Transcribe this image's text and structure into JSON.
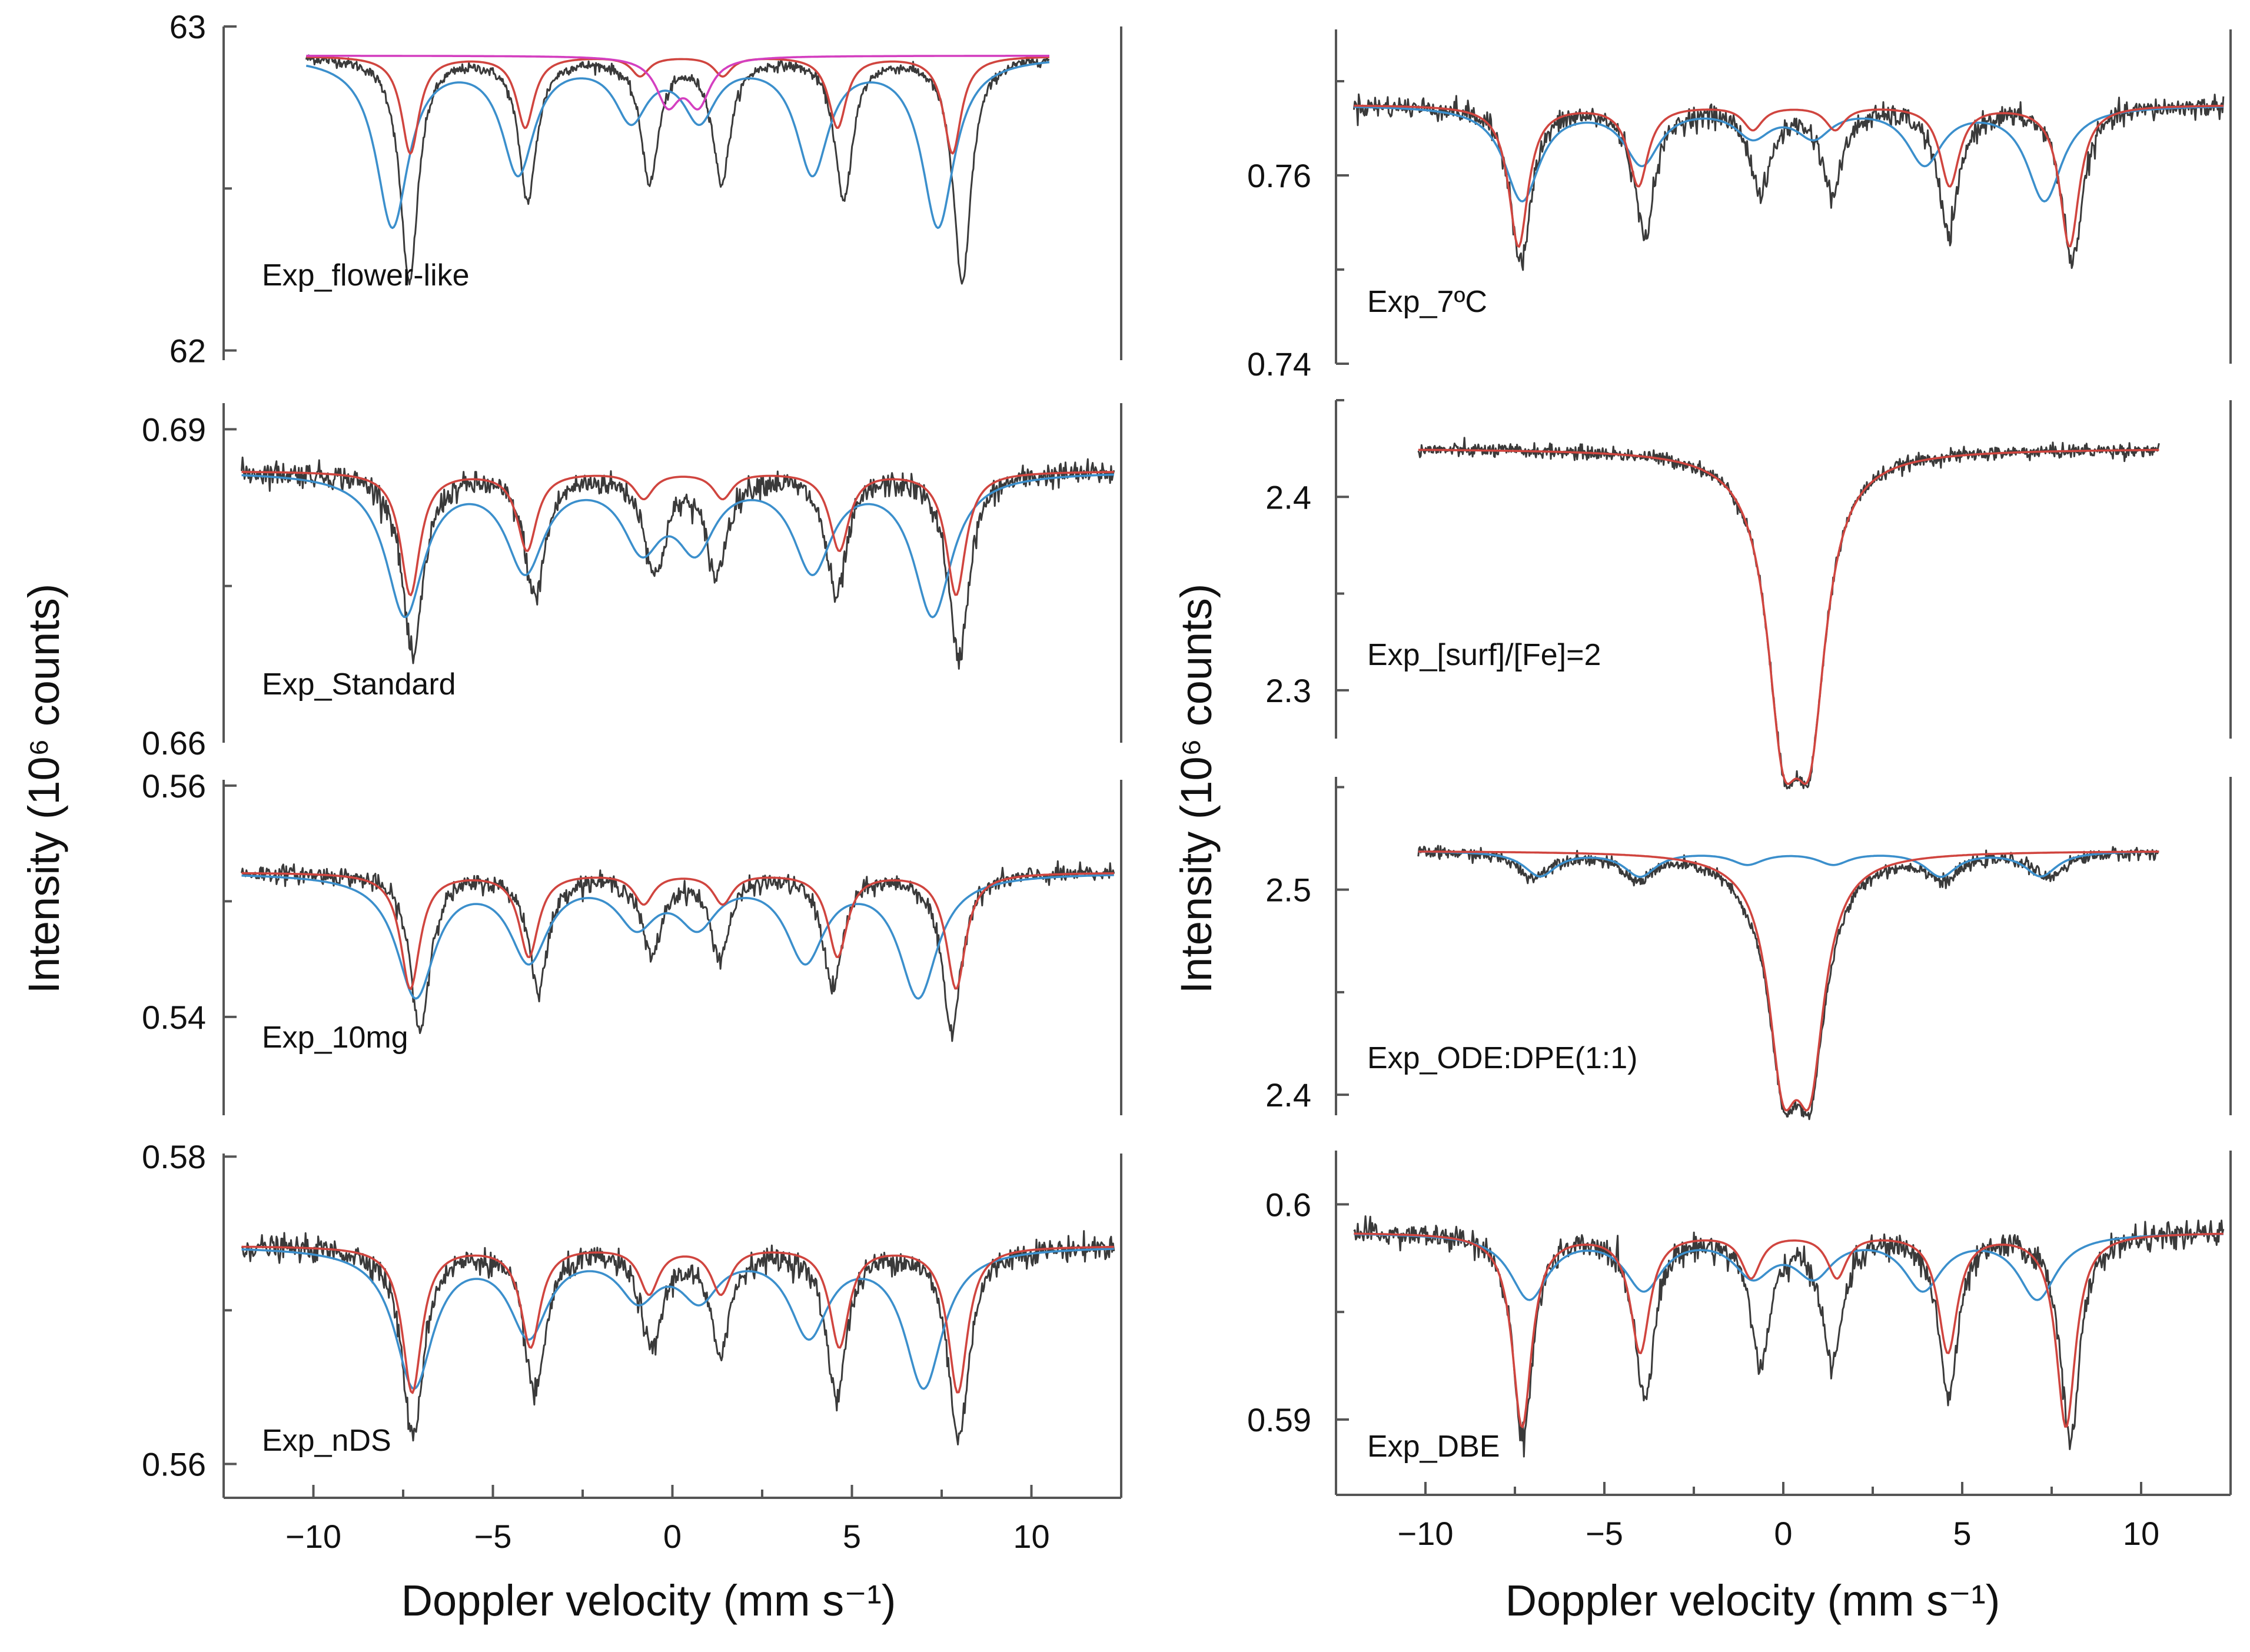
{
  "figure": {
    "left_y_axis_title": "Intensity (10⁶ counts)",
    "right_y_axis_title": "Intensity (10⁶ counts)",
    "left_x_axis_title": "Doppler velocity (mm s⁻¹)",
    "right_x_axis_title": "Doppler velocity (mm s⁻¹)"
  },
  "colors": {
    "experimental": "#3a3a3a",
    "sextet_a": "#d0453f",
    "sextet_b": "#3b8fcc",
    "doublet": "#d43fc0",
    "fit_blue_overlay": "#27508f"
  },
  "chart_data": [
    {
      "type": "line",
      "title": "Exp_flower-like",
      "xlabel": "Doppler velocity (mm s⁻¹)",
      "ylabel": "Intensity (10⁶ counts)",
      "xlim": [
        -12.5,
        12.5
      ],
      "ylim": [
        61.97,
        63.0
      ],
      "yticks": [
        "63",
        "62"
      ],
      "ytick_values": [
        63,
        62
      ],
      "xticks": [],
      "data_x_range": [
        -10.2,
        10.5
      ],
      "baseline": 62.91,
      "series": [
        {
          "name": "experimental",
          "kind": "sextet_data",
          "center": 0.37,
          "half_splits": [
            7.7,
            4.4,
            1.0
          ],
          "width": 0.3,
          "depths": [
            0.7,
            0.44,
            0.38
          ],
          "noise": 0.008
        },
        {
          "name": "sextet_a",
          "kind": "sextet",
          "center": 0.25,
          "half_splits": [
            7.55,
            4.35,
            1.15
          ],
          "width": 0.3,
          "depths": [
            0.3,
            0.22,
            0.06
          ]
        },
        {
          "name": "sextet_b",
          "kind": "sextet",
          "center": -0.2,
          "half_splits": [
            7.6,
            4.1,
            0.95
          ],
          "width": 0.55,
          "depths": [
            0.52,
            0.35,
            0.18
          ]
        },
        {
          "name": "doublet",
          "kind": "doublet",
          "center": 0.3,
          "splitting": 0.85,
          "width": 0.4,
          "depths": [
            0.14,
            0.14
          ]
        }
      ]
    },
    {
      "type": "line",
      "title": "Exp_Standard",
      "xlabel": "Doppler velocity (mm s⁻¹)",
      "ylabel": "Intensity (10⁶ counts)",
      "xlim": [
        -12.5,
        12.5
      ],
      "ylim": [
        0.66,
        0.6925
      ],
      "yticks": [
        "0.69",
        "0.66"
      ],
      "ytick_values": [
        0.69,
        0.66
      ],
      "xticks": [],
      "data_x_range": [
        -12.0,
        12.3
      ],
      "baseline": 0.686,
      "series": [
        {
          "name": "experimental",
          "kind": "sextet_data",
          "center": 0.37,
          "half_splits": [
            7.6,
            4.2,
            0.85
          ],
          "width": 0.35,
          "depths": [
            0.0178,
            0.0118,
            0.0095
          ],
          "noise": 0.0006
        },
        {
          "name": "sextet_a",
          "kind": "sextet",
          "center": 0.3,
          "half_splits": [
            7.6,
            4.35,
            1.1
          ],
          "width": 0.33,
          "depths": [
            0.0118,
            0.0075,
            0.0025
          ]
        },
        {
          "name": "sextet_b",
          "kind": "sextet",
          "center": -0.1,
          "half_splits": [
            7.35,
            4.0,
            0.75
          ],
          "width": 0.65,
          "depths": [
            0.0135,
            0.009,
            0.0065
          ]
        }
      ]
    },
    {
      "type": "line",
      "title": "Exp_10mg",
      "xlabel": "Doppler velocity (mm s⁻¹)",
      "ylabel": "Intensity (10⁶ counts)",
      "xlim": [
        -12.5,
        12.5
      ],
      "ylim": [
        0.5315,
        0.5605
      ],
      "yticks": [
        "0.56",
        "0.54"
      ],
      "ytick_values": [
        0.56,
        0.54
      ],
      "xticks": [],
      "data_x_range": [
        -12.0,
        12.3
      ],
      "baseline": 0.5525,
      "series": [
        {
          "name": "experimental",
          "kind": "sextet_data",
          "center": 0.37,
          "half_splits": [
            7.4,
            4.1,
            0.95
          ],
          "width": 0.33,
          "depths": [
            0.0135,
            0.0098,
            0.007
          ],
          "noise": 0.0004
        },
        {
          "name": "sextet_a",
          "kind": "sextet",
          "center": 0.3,
          "half_splits": [
            7.6,
            4.3,
            1.1
          ],
          "width": 0.33,
          "depths": [
            0.01,
            0.0072,
            0.0026
          ]
        },
        {
          "name": "sextet_b",
          "kind": "sextet",
          "center": -0.15,
          "half_splits": [
            7.0,
            3.85,
            0.85
          ],
          "width": 0.65,
          "depths": [
            0.0105,
            0.0072,
            0.004
          ]
        }
      ]
    },
    {
      "type": "line",
      "title": "Exp_nDS",
      "xlabel": "Doppler velocity (mm s⁻¹)",
      "ylabel": "Intensity (10⁶ counts)",
      "xlim": [
        -12.5,
        12.5
      ],
      "ylim": [
        0.5578,
        0.5802
      ],
      "yticks": [
        "0.58",
        "0.56"
      ],
      "ytick_values": [
        0.58,
        0.56
      ],
      "xticks": [
        "−10",
        "−5",
        "0",
        "5",
        "10"
      ],
      "xtick_values": [
        -10,
        -5,
        0,
        5,
        10
      ],
      "data_x_range": [
        -12.0,
        12.3
      ],
      "baseline": 0.5742,
      "series": [
        {
          "name": "experimental",
          "kind": "sextet_data",
          "center": 0.37,
          "half_splits": [
            7.6,
            4.2,
            0.95
          ],
          "width": 0.35,
          "depths": [
            0.0125,
            0.0095,
            0.0065
          ],
          "noise": 0.0004
        },
        {
          "name": "sextet_a",
          "kind": "sextet",
          "center": 0.35,
          "half_splits": [
            7.6,
            4.3,
            1.0
          ],
          "width": 0.33,
          "depths": [
            0.0095,
            0.0065,
            0.003
          ]
        },
        {
          "name": "sextet_b",
          "kind": "sextet",
          "center": -0.1,
          "half_splits": [
            7.1,
            3.9,
            0.85
          ],
          "width": 0.65,
          "depths": [
            0.009,
            0.0055,
            0.003
          ]
        }
      ]
    },
    {
      "type": "line",
      "title": "Exp_7ºC",
      "xlabel": "Doppler velocity (mm s⁻¹)",
      "ylabel": "Intensity (10⁶ counts)",
      "xlim": [
        -12.5,
        12.5
      ],
      "ylim": [
        0.74,
        0.7755
      ],
      "yticks": [
        "0.76",
        "0.74"
      ],
      "ytick_values": [
        0.76,
        0.74
      ],
      "xticks": [],
      "data_x_range": [
        -12.0,
        12.3
      ],
      "baseline": 0.7675,
      "series": [
        {
          "name": "experimental",
          "kind": "sextet_data",
          "center": 0.37,
          "half_splits": [
            7.7,
            4.25,
            1.0
          ],
          "width": 0.35,
          "depths": [
            0.0165,
            0.0135,
            0.009
          ],
          "noise": 0.0006
        },
        {
          "name": "sextet_a",
          "kind": "sextet",
          "center": 0.3,
          "half_splits": [
            7.7,
            4.35,
            1.15
          ],
          "width": 0.33,
          "depths": [
            0.015,
            0.0085,
            0.0025
          ]
        },
        {
          "name": "sextet_b",
          "kind": "sextet",
          "center": 0.0,
          "half_splits": [
            7.3,
            3.95,
            0.85
          ],
          "width": 0.6,
          "depths": [
            0.01,
            0.006,
            0.003
          ]
        }
      ]
    },
    {
      "type": "line",
      "title": "Exp_[surf]/[Fe]=2",
      "xlabel": "Doppler velocity (mm s⁻¹)",
      "ylabel": "Intensity (10⁶ counts)",
      "xlim": [
        -12.5,
        12.5
      ],
      "ylim": [
        2.275,
        2.45
      ],
      "yticks": [
        "2.4",
        "2.3"
      ],
      "ytick_values": [
        2.4,
        2.3
      ],
      "xticks": [],
      "data_x_range": [
        -10.2,
        10.5
      ],
      "baseline": 2.425,
      "series": [
        {
          "name": "experimental",
          "kind": "doublet_data",
          "center": 0.37,
          "splitting": 0.75,
          "width": 0.55,
          "depths": [
            0.125,
            0.125
          ],
          "noise": 0.0018
        },
        {
          "name": "sextet_a",
          "kind": "doublet",
          "center": 0.37,
          "splitting": 0.75,
          "width": 0.55,
          "depths": [
            0.125,
            0.125
          ]
        }
      ]
    },
    {
      "type": "line",
      "title": "Exp_ODE:DPE(1:1)",
      "xlabel": "Doppler velocity (mm s⁻¹)",
      "ylabel": "Intensity (10⁶ counts)",
      "xlim": [
        -12.5,
        12.5
      ],
      "ylim": [
        2.39,
        2.555
      ],
      "yticks": [
        "2.5",
        "2.4"
      ],
      "ytick_values": [
        2.5,
        2.4
      ],
      "xticks": [],
      "data_x_range": [
        -10.2,
        10.5
      ],
      "baseline": 2.519,
      "series": [
        {
          "name": "experimental",
          "kind": "sextet_doublet_data",
          "center": 0.2,
          "half_splits": [
            7.2,
            4.3,
            1.2
          ],
          "width": 0.5,
          "depths": [
            0.012,
            0.012,
            0.006
          ],
          "doublet_center": 0.37,
          "doublet_splitting": 0.75,
          "doublet_width": 0.5,
          "doublet_depths": [
            0.095,
            0.095
          ],
          "noise": 0.0015
        },
        {
          "name": "sextet_a",
          "kind": "doublet",
          "center": 0.37,
          "splitting": 0.75,
          "width": 0.5,
          "depths": [
            0.095,
            0.095
          ]
        },
        {
          "name": "sextet_b",
          "kind": "sextet",
          "center": 0.2,
          "half_splits": [
            7.0,
            4.2,
            1.2
          ],
          "width": 0.55,
          "depths": [
            0.012,
            0.012,
            0.006
          ]
        }
      ]
    },
    {
      "type": "line",
      "title": "Exp_DBE",
      "xlabel": "Doppler velocity (mm s⁻¹)",
      "ylabel": "Intensity (10⁶ counts)",
      "xlim": [
        -12.5,
        12.5
      ],
      "ylim": [
        0.5865,
        0.6025
      ],
      "yticks": [
        "0.6",
        "0.59"
      ],
      "ytick_values": [
        0.6,
        0.59
      ],
      "xticks": [
        "−10",
        "−5",
        "0",
        "5",
        "10"
      ],
      "xtick_values": [
        -10,
        -5,
        0,
        5,
        10
      ],
      "data_x_range": [
        -12.0,
        12.3
      ],
      "baseline": 0.5987,
      "series": [
        {
          "name": "experimental",
          "kind": "sextet_data",
          "center": 0.37,
          "half_splits": [
            7.65,
            4.25,
            1.0
          ],
          "width": 0.33,
          "depths": [
            0.0095,
            0.0075,
            0.006
          ],
          "noise": 0.0003
        },
        {
          "name": "sextet_a",
          "kind": "sextet",
          "center": 0.3,
          "half_splits": [
            7.6,
            4.3,
            1.2
          ],
          "width": 0.33,
          "depths": [
            0.009,
            0.0055,
            0.002
          ]
        },
        {
          "name": "sextet_b",
          "kind": "sextet",
          "center": 0.0,
          "half_splits": [
            7.1,
            3.9,
            0.85
          ],
          "width": 0.65,
          "depths": [
            0.003,
            0.0025,
            0.0018
          ]
        }
      ]
    }
  ]
}
